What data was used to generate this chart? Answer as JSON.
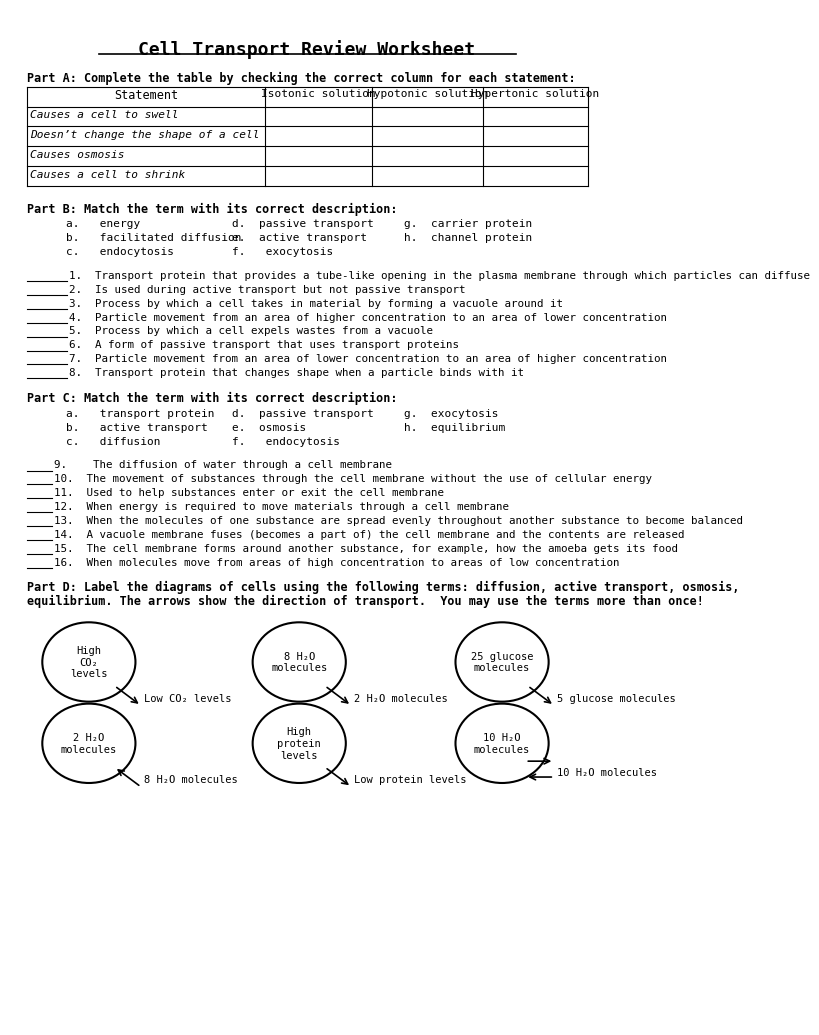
{
  "title": "Cell Transport Review Worksheet",
  "bg_color": "#ffffff",
  "text_color": "#000000",
  "part_a_header": "Part A: Complete the table by checking the correct column for each statement:",
  "table_headers": [
    "Statement",
    "Isotonic solution",
    "Hypotonic solution",
    "Hypertonic solution"
  ],
  "table_rows": [
    "Causes a cell to swell",
    "Doesn’t change the shape of a cell",
    "Causes osmosis",
    "Causes a cell to shrink"
  ],
  "part_b_header": "Part B: Match the term with its correct description:",
  "part_b_terms": [
    [
      "a.   energy",
      "d.  passive transport",
      "g.  carrier protein"
    ],
    [
      "b.   facilitated diffusion",
      "e.  active transport",
      "h.  channel protein"
    ],
    [
      "c.   endocytosis",
      "f.   exocytosis",
      ""
    ]
  ],
  "part_b_questions": [
    "1.  Transport protein that provides a tube-like opening in the plasma membrane through which particles can diffuse",
    "2.  Is used during active transport but not passive transport",
    "3.  Process by which a cell takes in material by forming a vacuole around it",
    "4.  Particle movement from an area of higher concentration to an area of lower concentration",
    "5.  Process by which a cell expels wastes from a vacuole",
    "6.  A form of passive transport that uses transport proteins",
    "7.  Particle movement from an area of lower concentration to an area of higher concentration",
    "8.  Transport protein that changes shape when a particle binds with it"
  ],
  "part_c_header": "Part C: Match the term with its correct description:",
  "part_c_terms": [
    [
      "a.   transport protein",
      "d.  passive transport",
      "g.  exocytosis"
    ],
    [
      "b.   active transport",
      "e.  osmosis",
      "h.  equilibrium"
    ],
    [
      "c.   diffusion",
      "f.   endocytosis",
      ""
    ]
  ],
  "part_c_questions": [
    "9.    The diffusion of water through a cell membrane",
    "10.  The movement of substances through the cell membrane without the use of cellular energy",
    "11.  Used to help substances enter or exit the cell membrane",
    "12.  When energy is required to move materials through a cell membrane",
    "13.  When the molecules of one substance are spread evenly throughout another substance to become balanced",
    "14.  A vacuole membrane fuses (becomes a part of) the cell membrane and the contents are released",
    "15.  The cell membrane forms around another substance, for example, how the amoeba gets its food",
    "16.  When molecules move from areas of high concentration to areas of low concentration"
  ],
  "part_d_line1": "Part D: Label the diagrams of cells using the following terms: diffusion, active transport, osmosis,",
  "part_d_line2": "equilibrium. The arrows show the direction of transport.  You may use the terms more than once!",
  "cells": [
    {
      "inside": "High\nCO₂\nlevels",
      "outside": "Low CO₂ levels",
      "arrow_dir": "out"
    },
    {
      "inside": "8 H₂O\nmolecules",
      "outside": "2 H₂O molecules",
      "arrow_dir": "out"
    },
    {
      "inside": "25 glucose\nmolecules",
      "outside": "5 glucose molecules",
      "arrow_dir": "out"
    },
    {
      "inside": "2 H₂O\nmolecules",
      "outside": "8 H₂O molecules",
      "arrow_dir": "in"
    },
    {
      "inside": "High\nprotein\nlevels",
      "outside": "Low protein levels",
      "arrow_dir": "out"
    },
    {
      "inside": "10 H₂O\nmolecules",
      "outside": "10 H₂O molecules",
      "arrow_dir": "both"
    }
  ]
}
